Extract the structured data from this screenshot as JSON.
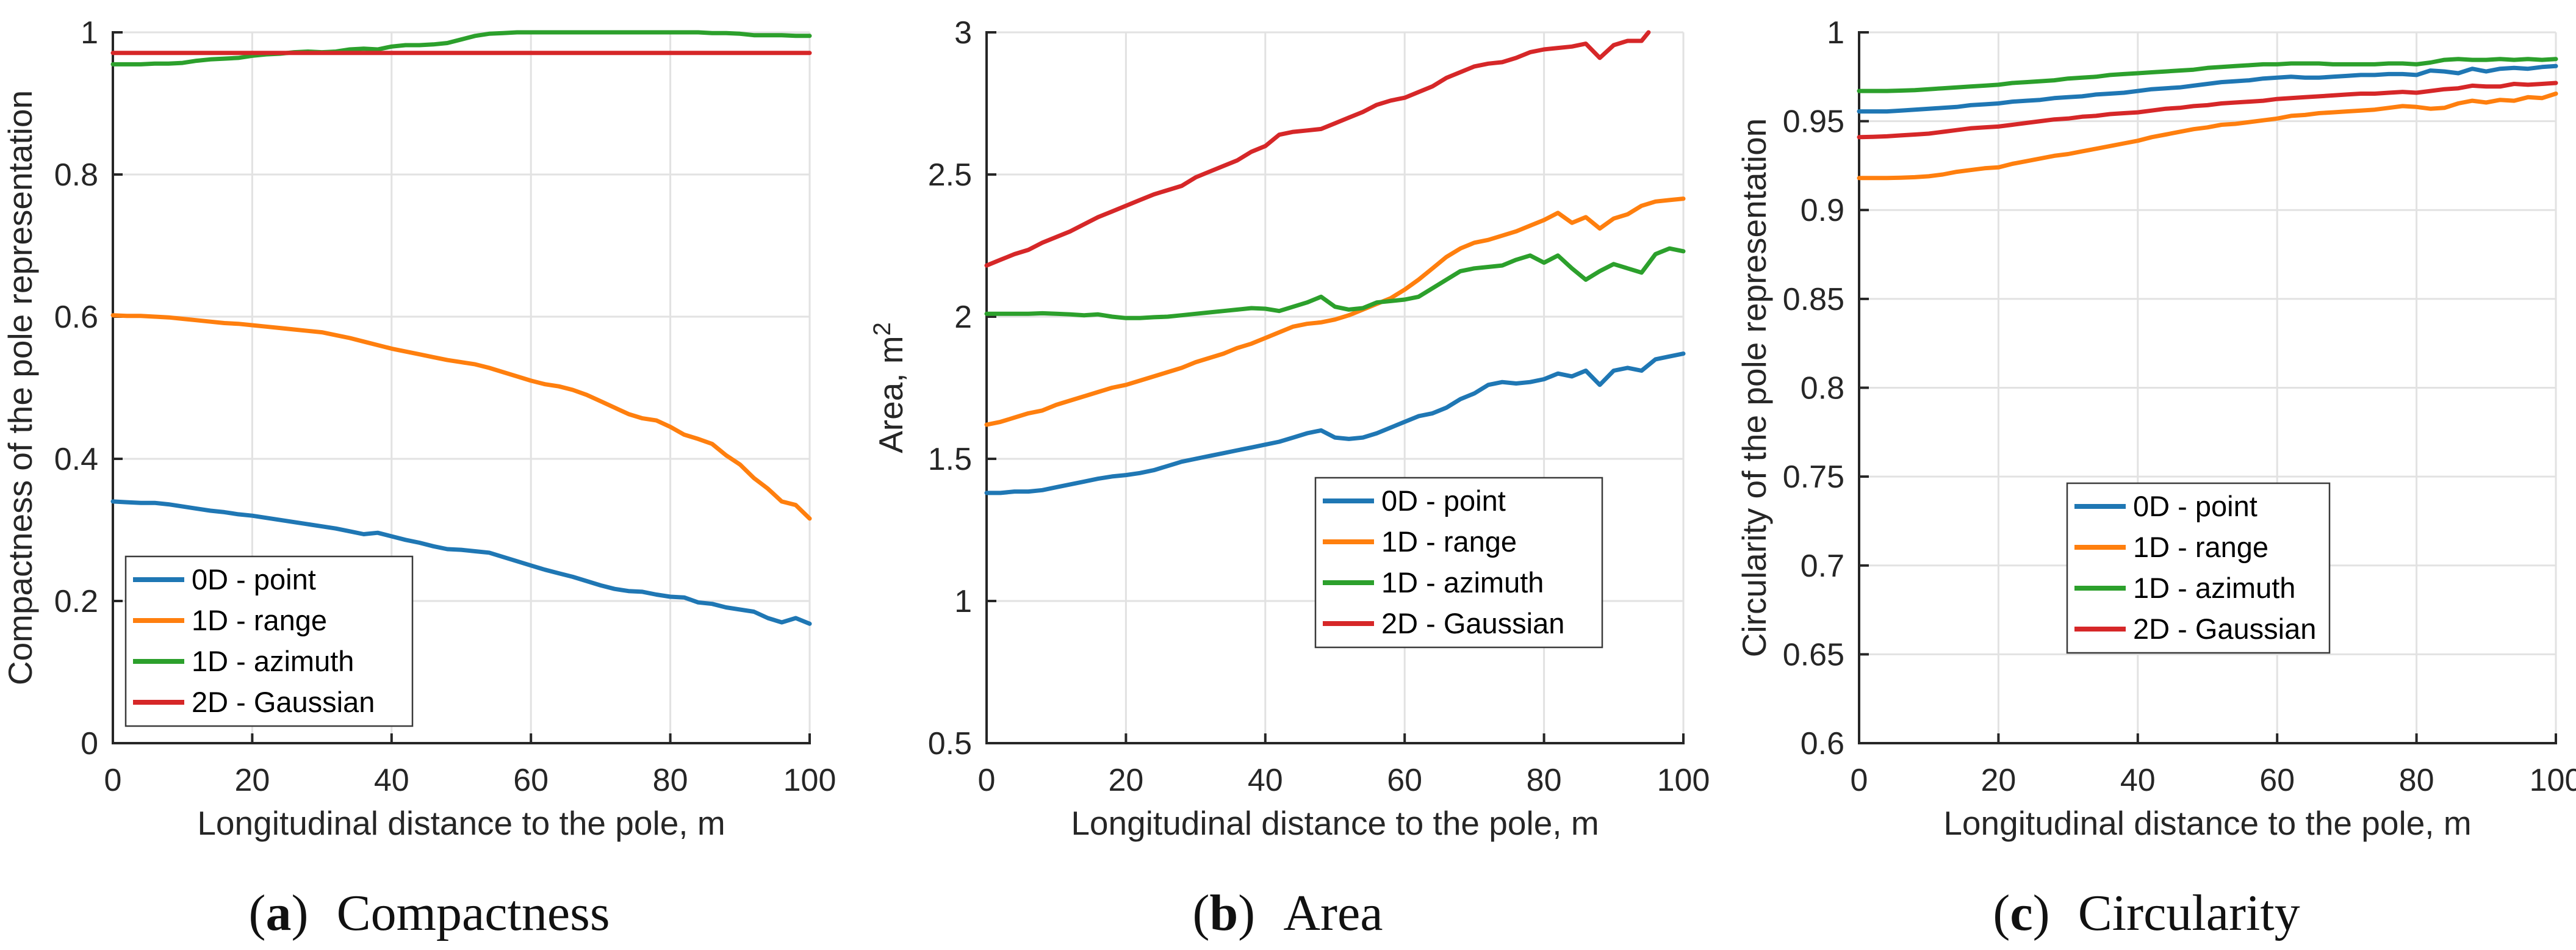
{
  "figure": {
    "background": "#ffffff",
    "text_color": "#262626",
    "grid_color": "#e2e2e2",
    "axis_color": "#262626",
    "legend_border_color": "#3a3a3a"
  },
  "legend": {
    "entries": [
      {
        "label": "0D - point",
        "series": "0d-point",
        "color": "#1f77b4"
      },
      {
        "label": "1D - range",
        "series": "1d-range",
        "color": "#ff7f0e"
      },
      {
        "label": "1D - azimuth",
        "series": "1d-azimuth",
        "color": "#2ca02c"
      },
      {
        "label": "2D - Gaussian",
        "series": "2d-gaussian",
        "color": "#d62728"
      }
    ]
  },
  "chart_data": [
    {
      "id": "a",
      "type": "line",
      "caption": {
        "letter": "a",
        "label": "Compactness"
      },
      "xlabel": "Longitudinal distance to the pole, m",
      "ylabel": "Compactness of the pole representation",
      "ylabel_sup": "",
      "xlim": [
        0,
        100
      ],
      "ylim": [
        0,
        1
      ],
      "xticks": [
        0,
        20,
        40,
        60,
        80,
        100
      ],
      "xtick_labels": [
        "0",
        "20",
        "40",
        "60",
        "80",
        "100"
      ],
      "yticks": [
        0,
        0.2,
        0.4,
        0.6,
        0.8,
        1
      ],
      "ytick_labels": [
        "0",
        "0.2",
        "0.4",
        "0.6",
        "0.8",
        "1"
      ],
      "grid": true,
      "legend_position": "bottom-left",
      "x": [
        0,
        2,
        4,
        6,
        8,
        10,
        12,
        14,
        16,
        18,
        20,
        22,
        24,
        26,
        28,
        30,
        32,
        34,
        36,
        38,
        40,
        42,
        44,
        46,
        48,
        50,
        52,
        54,
        56,
        58,
        60,
        62,
        64,
        66,
        68,
        70,
        72,
        74,
        76,
        78,
        80,
        82,
        84,
        86,
        88,
        90,
        92,
        94,
        96,
        98,
        100
      ],
      "series": [
        {
          "name": "0D - point",
          "color": "#1f77b4",
          "values": [
            0.34,
            0.339,
            0.338,
            0.338,
            0.336,
            0.333,
            0.33,
            0.327,
            0.325,
            0.322,
            0.32,
            0.317,
            0.314,
            0.311,
            0.308,
            0.305,
            0.302,
            0.298,
            0.294,
            0.296,
            0.291,
            0.286,
            0.282,
            0.277,
            0.273,
            0.272,
            0.27,
            0.268,
            0.262,
            0.256,
            0.25,
            0.244,
            0.239,
            0.234,
            0.228,
            0.222,
            0.217,
            0.214,
            0.213,
            0.209,
            0.206,
            0.205,
            0.198,
            0.196,
            0.191,
            0.188,
            0.185,
            0.176,
            0.17,
            0.176,
            0.168
          ]
        },
        {
          "name": "1D - range",
          "color": "#ff7f0e",
          "values": [
            0.602,
            0.601,
            0.601,
            0.6,
            0.599,
            0.597,
            0.595,
            0.593,
            0.591,
            0.59,
            0.588,
            0.586,
            0.584,
            0.582,
            0.58,
            0.578,
            0.574,
            0.57,
            0.565,
            0.56,
            0.555,
            0.551,
            0.547,
            0.543,
            0.539,
            0.536,
            0.533,
            0.528,
            0.522,
            0.516,
            0.51,
            0.505,
            0.502,
            0.497,
            0.49,
            0.481,
            0.472,
            0.463,
            0.457,
            0.454,
            0.445,
            0.434,
            0.428,
            0.421,
            0.405,
            0.392,
            0.373,
            0.358,
            0.34,
            0.335,
            0.316
          ]
        },
        {
          "name": "1D - azimuth",
          "color": "#2ca02c",
          "values": [
            0.955,
            0.955,
            0.955,
            0.956,
            0.956,
            0.957,
            0.96,
            0.962,
            0.963,
            0.964,
            0.967,
            0.969,
            0.97,
            0.972,
            0.973,
            0.972,
            0.973,
            0.976,
            0.977,
            0.976,
            0.98,
            0.982,
            0.982,
            0.983,
            0.985,
            0.99,
            0.995,
            0.998,
            0.999,
            1.0,
            1.0,
            1.0,
            1.0,
            1.0,
            1.0,
            1.0,
            1.0,
            1.0,
            1.0,
            1.0,
            1.0,
            1.0,
            1.0,
            0.999,
            0.999,
            0.998,
            0.996,
            0.996,
            0.996,
            0.995,
            0.995
          ]
        },
        {
          "name": "2D - Gaussian",
          "color": "#d62728",
          "values": [
            0.971,
            0.971,
            0.971,
            0.971,
            0.971,
            0.971,
            0.971,
            0.971,
            0.971,
            0.971,
            0.971,
            0.971,
            0.971,
            0.971,
            0.971,
            0.971,
            0.971,
            0.971,
            0.971,
            0.971,
            0.971,
            0.971,
            0.971,
            0.971,
            0.971,
            0.971,
            0.971,
            0.971,
            0.971,
            0.971,
            0.971,
            0.971,
            0.971,
            0.971,
            0.971,
            0.971,
            0.971,
            0.971,
            0.971,
            0.971,
            0.971,
            0.971,
            0.971,
            0.971,
            0.971,
            0.971,
            0.971,
            0.971,
            0.971,
            0.971,
            0.971
          ]
        }
      ]
    },
    {
      "id": "b",
      "type": "line",
      "caption": {
        "letter": "b",
        "label": "Area"
      },
      "xlabel": "Longitudinal distance to the pole, m",
      "ylabel": "Area, m",
      "ylabel_sup": "2",
      "xlim": [
        0,
        100
      ],
      "ylim": [
        0.5,
        3
      ],
      "xticks": [
        0,
        20,
        40,
        60,
        80,
        100
      ],
      "xtick_labels": [
        "0",
        "20",
        "40",
        "60",
        "80",
        "100"
      ],
      "yticks": [
        0.5,
        1,
        1.5,
        2,
        2.5,
        3
      ],
      "ytick_labels": [
        "0.5",
        "1",
        "1.5",
        "2",
        "2.5",
        "3"
      ],
      "grid": true,
      "legend_position": "center-right",
      "x": [
        0,
        2,
        4,
        6,
        8,
        10,
        12,
        14,
        16,
        18,
        20,
        22,
        24,
        26,
        28,
        30,
        32,
        34,
        36,
        38,
        40,
        42,
        44,
        46,
        48,
        50,
        52,
        54,
        56,
        58,
        60,
        62,
        64,
        66,
        68,
        70,
        72,
        74,
        76,
        78,
        80,
        82,
        84,
        86,
        88,
        90,
        92,
        94,
        96,
        98,
        100
      ],
      "series": [
        {
          "name": "0D - point",
          "color": "#1f77b4",
          "values": [
            1.38,
            1.38,
            1.385,
            1.385,
            1.39,
            1.4,
            1.41,
            1.42,
            1.43,
            1.438,
            1.443,
            1.45,
            1.46,
            1.475,
            1.49,
            1.5,
            1.51,
            1.52,
            1.53,
            1.54,
            1.55,
            1.56,
            1.575,
            1.59,
            1.6,
            1.575,
            1.57,
            1.575,
            1.59,
            1.61,
            1.63,
            1.65,
            1.66,
            1.68,
            1.71,
            1.73,
            1.76,
            1.77,
            1.765,
            1.77,
            1.78,
            1.8,
            1.79,
            1.81,
            1.76,
            1.81,
            1.82,
            1.81,
            1.85,
            1.86,
            1.87
          ]
        },
        {
          "name": "1D - range",
          "color": "#ff7f0e",
          "values": [
            1.62,
            1.63,
            1.645,
            1.66,
            1.67,
            1.69,
            1.705,
            1.72,
            1.735,
            1.75,
            1.76,
            1.775,
            1.79,
            1.805,
            1.82,
            1.84,
            1.855,
            1.87,
            1.89,
            1.905,
            1.925,
            1.945,
            1.965,
            1.975,
            1.98,
            1.99,
            2.005,
            2.025,
            2.045,
            2.065,
            2.095,
            2.13,
            2.17,
            2.21,
            2.24,
            2.26,
            2.27,
            2.285,
            2.3,
            2.32,
            2.34,
            2.365,
            2.33,
            2.35,
            2.31,
            2.345,
            2.36,
            2.39,
            2.405,
            2.41,
            2.415
          ]
        },
        {
          "name": "1D - azimuth",
          "color": "#2ca02c",
          "values": [
            2.01,
            2.01,
            2.01,
            2.01,
            2.012,
            2.01,
            2.008,
            2.005,
            2.008,
            2.0,
            1.995,
            1.995,
            1.998,
            2.0,
            2.005,
            2.01,
            2.015,
            2.02,
            2.025,
            2.03,
            2.028,
            2.02,
            2.035,
            2.05,
            2.07,
            2.035,
            2.025,
            2.03,
            2.05,
            2.055,
            2.06,
            2.07,
            2.1,
            2.13,
            2.16,
            2.17,
            2.175,
            2.18,
            2.2,
            2.215,
            2.19,
            2.215,
            2.17,
            2.13,
            2.16,
            2.185,
            2.17,
            2.155,
            2.22,
            2.24,
            2.23
          ]
        },
        {
          "name": "2D - Gaussian",
          "color": "#d62728",
          "x": [
            0,
            2,
            4,
            6,
            8,
            10,
            12,
            14,
            16,
            18,
            20,
            22,
            24,
            26,
            28,
            30,
            32,
            34,
            36,
            38,
            40,
            42,
            44,
            46,
            48,
            50,
            52,
            54,
            56,
            58,
            60,
            62,
            64,
            66,
            68,
            70,
            72,
            74,
            76,
            78,
            80,
            82,
            84,
            86,
            88,
            90,
            92,
            94,
            95
          ],
          "values": [
            2.18,
            2.2,
            2.22,
            2.235,
            2.26,
            2.28,
            2.3,
            2.325,
            2.35,
            2.37,
            2.39,
            2.41,
            2.43,
            2.445,
            2.46,
            2.49,
            2.51,
            2.53,
            2.55,
            2.58,
            2.6,
            2.64,
            2.65,
            2.655,
            2.66,
            2.68,
            2.7,
            2.72,
            2.745,
            2.76,
            2.77,
            2.79,
            2.81,
            2.84,
            2.86,
            2.88,
            2.89,
            2.895,
            2.91,
            2.93,
            2.94,
            2.945,
            2.95,
            2.96,
            2.91,
            2.955,
            2.97,
            2.97,
            3.0
          ]
        }
      ]
    },
    {
      "id": "c",
      "type": "line",
      "caption": {
        "letter": "c",
        "label": "Circularity"
      },
      "xlabel": "Longitudinal distance to the pole, m",
      "ylabel": "Circularity of the pole representation",
      "ylabel_sup": "",
      "xlim": [
        0,
        100
      ],
      "ylim": [
        0.6,
        1
      ],
      "xticks": [
        0,
        20,
        40,
        60,
        80,
        100
      ],
      "xtick_labels": [
        "0",
        "20",
        "40",
        "60",
        "80",
        "100"
      ],
      "yticks": [
        0.6,
        0.65,
        0.7,
        0.75,
        0.8,
        0.85,
        0.9,
        0.95,
        1
      ],
      "ytick_labels": [
        "0.6",
        "0.65",
        "0.7",
        "0.75",
        "0.8",
        "0.85",
        "0.9",
        "0.95",
        "1"
      ],
      "grid": true,
      "legend_position": "center",
      "x": [
        0,
        2,
        4,
        6,
        8,
        10,
        12,
        14,
        16,
        18,
        20,
        22,
        24,
        26,
        28,
        30,
        32,
        34,
        36,
        38,
        40,
        42,
        44,
        46,
        48,
        50,
        52,
        54,
        56,
        58,
        60,
        62,
        64,
        66,
        68,
        70,
        72,
        74,
        76,
        78,
        80,
        82,
        84,
        86,
        88,
        90,
        92,
        94,
        96,
        98,
        100
      ],
      "series": [
        {
          "name": "0D - point",
          "color": "#1f77b4",
          "values": [
            0.9555,
            0.9555,
            0.9555,
            0.956,
            0.9565,
            0.957,
            0.9575,
            0.958,
            0.959,
            0.9595,
            0.96,
            0.961,
            0.9615,
            0.962,
            0.963,
            0.9635,
            0.964,
            0.965,
            0.9655,
            0.966,
            0.967,
            0.968,
            0.9685,
            0.969,
            0.97,
            0.971,
            0.972,
            0.9725,
            0.973,
            0.974,
            0.9745,
            0.975,
            0.9745,
            0.9745,
            0.975,
            0.9755,
            0.976,
            0.976,
            0.9765,
            0.9765,
            0.976,
            0.9785,
            0.978,
            0.977,
            0.9795,
            0.978,
            0.9795,
            0.98,
            0.9795,
            0.9805,
            0.981
          ]
        },
        {
          "name": "1D - range",
          "color": "#ff7f0e",
          "values": [
            0.918,
            0.918,
            0.918,
            0.9182,
            0.9185,
            0.919,
            0.92,
            0.9215,
            0.9225,
            0.9235,
            0.924,
            0.926,
            0.9275,
            0.929,
            0.9305,
            0.9315,
            0.933,
            0.9345,
            0.936,
            0.9375,
            0.939,
            0.941,
            0.9425,
            0.944,
            0.9455,
            0.9465,
            0.948,
            0.9485,
            0.9495,
            0.9505,
            0.9515,
            0.953,
            0.9535,
            0.9545,
            0.955,
            0.9555,
            0.956,
            0.9565,
            0.9575,
            0.9585,
            0.958,
            0.957,
            0.9575,
            0.96,
            0.9615,
            0.9605,
            0.962,
            0.9615,
            0.9635,
            0.963,
            0.9655
          ]
        },
        {
          "name": "1D - azimuth",
          "color": "#2ca02c",
          "values": [
            0.967,
            0.967,
            0.967,
            0.9672,
            0.9675,
            0.968,
            0.9685,
            0.969,
            0.9695,
            0.97,
            0.9705,
            0.9715,
            0.972,
            0.9725,
            0.973,
            0.974,
            0.9745,
            0.975,
            0.976,
            0.9765,
            0.977,
            0.9775,
            0.978,
            0.9785,
            0.979,
            0.98,
            0.9805,
            0.981,
            0.9815,
            0.982,
            0.982,
            0.9825,
            0.9825,
            0.9825,
            0.982,
            0.982,
            0.982,
            0.982,
            0.9825,
            0.9825,
            0.982,
            0.983,
            0.9845,
            0.985,
            0.9845,
            0.9845,
            0.985,
            0.9845,
            0.985,
            0.9845,
            0.985
          ]
        },
        {
          "name": "2D - Gaussian",
          "color": "#d62728",
          "values": [
            0.941,
            0.9412,
            0.9415,
            0.942,
            0.9425,
            0.943,
            0.944,
            0.945,
            0.946,
            0.9465,
            0.947,
            0.948,
            0.949,
            0.95,
            0.951,
            0.9515,
            0.9525,
            0.953,
            0.954,
            0.9545,
            0.955,
            0.956,
            0.957,
            0.9575,
            0.9585,
            0.959,
            0.96,
            0.9605,
            0.961,
            0.9615,
            0.9625,
            0.963,
            0.9635,
            0.964,
            0.9645,
            0.965,
            0.9655,
            0.9655,
            0.966,
            0.9665,
            0.966,
            0.967,
            0.968,
            0.9685,
            0.97,
            0.9695,
            0.9695,
            0.971,
            0.9705,
            0.971,
            0.9715
          ]
        }
      ]
    }
  ]
}
